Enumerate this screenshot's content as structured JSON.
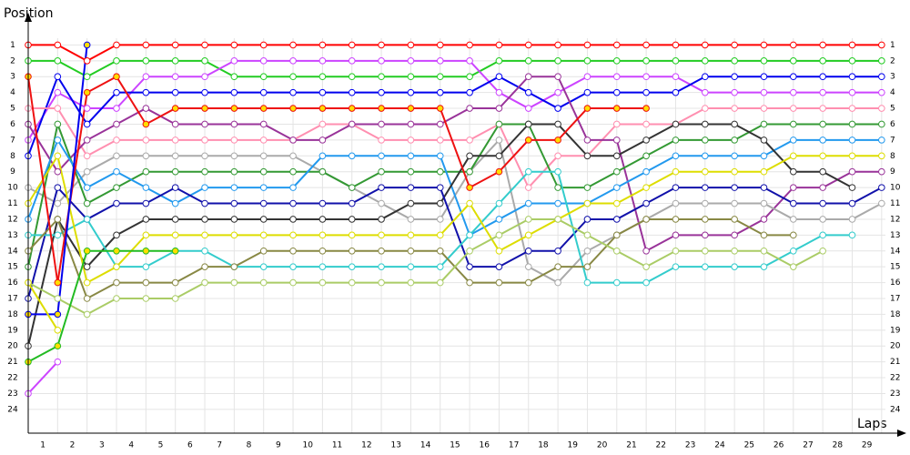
{
  "chart_data": {
    "type": "line",
    "y_label": "Position",
    "x_label": "Laps",
    "x": [
      0,
      1,
      2,
      3,
      4,
      5,
      6,
      7,
      8,
      9,
      10,
      11,
      12,
      13,
      14,
      15,
      16,
      17,
      18,
      19,
      20,
      21,
      22,
      23,
      24,
      25,
      26,
      27,
      28,
      29
    ],
    "xlim": [
      0,
      29.5
    ],
    "xticks": [
      1,
      2,
      3,
      4,
      5,
      6,
      7,
      8,
      9,
      10,
      11,
      12,
      13,
      14,
      15,
      16,
      17,
      18,
      19,
      20,
      21,
      22,
      23,
      24,
      25,
      26,
      27,
      28,
      29
    ],
    "ylim": [
      25.5,
      0
    ],
    "yticks": [
      1,
      2,
      3,
      4,
      5,
      6,
      7,
      8,
      9,
      10,
      11,
      12,
      13,
      14,
      15,
      16,
      17,
      18,
      19,
      20,
      21,
      22,
      23,
      24
    ],
    "grid": true,
    "series": [
      {
        "color": "#ff0000",
        "values": [
          1,
          1,
          2,
          1,
          1,
          1,
          1,
          1,
          1,
          1,
          1,
          1,
          1,
          1,
          1,
          1,
          1,
          1,
          1,
          1,
          1,
          1,
          1,
          1,
          1,
          1,
          1,
          1,
          1,
          1
        ]
      },
      {
        "color": "#22cc22",
        "values": [
          2,
          2,
          3,
          2,
          2,
          2,
          2,
          3,
          3,
          3,
          3,
          3,
          3,
          3,
          3,
          3,
          2,
          2,
          2,
          2,
          2,
          2,
          2,
          2,
          2,
          2,
          2,
          2,
          2,
          2
        ]
      },
      {
        "color": "#cc44ff",
        "values": [
          7,
          4,
          5,
          5,
          3,
          3,
          3,
          2,
          2,
          2,
          2,
          2,
          2,
          2,
          2,
          2,
          4,
          5,
          4,
          3,
          3,
          3,
          3,
          4,
          4,
          4,
          4,
          4,
          4,
          4
        ]
      },
      {
        "color": "#0000ee",
        "values": [
          8,
          3,
          6,
          4,
          4,
          4,
          4,
          4,
          4,
          4,
          4,
          4,
          4,
          4,
          4,
          4,
          3,
          4,
          5,
          4,
          4,
          4,
          4,
          3,
          3,
          3,
          3,
          3,
          3,
          3
        ]
      },
      {
        "color": "#ff8fb0",
        "values": [
          5,
          5,
          8,
          7,
          7,
          7,
          7,
          7,
          7,
          7,
          6,
          6,
          7,
          7,
          7,
          7,
          6,
          10,
          8,
          8,
          6,
          6,
          6,
          5,
          5,
          5,
          5,
          5,
          5,
          5
        ]
      },
      {
        "color": "#993399",
        "values": [
          6,
          9,
          7,
          6,
          5,
          6,
          6,
          6,
          6,
          7,
          7,
          6,
          6,
          6,
          6,
          5,
          5,
          3,
          3,
          7,
          7,
          14,
          13,
          13,
          13,
          12,
          10,
          10,
          9,
          9
        ]
      },
      {
        "color": "#aaaaaa",
        "values": [
          10,
          11,
          9,
          8,
          8,
          8,
          8,
          8,
          8,
          8,
          9,
          10,
          11,
          12,
          12,
          9,
          7,
          15,
          16,
          14,
          13,
          12,
          11,
          11,
          11,
          11,
          12,
          12,
          12,
          11
        ]
      },
      {
        "color": "#339933",
        "values": [
          15,
          6,
          11,
          10,
          9,
          9,
          9,
          9,
          9,
          9,
          9,
          10,
          9,
          9,
          9,
          9,
          6,
          6,
          10,
          10,
          9,
          8,
          7,
          7,
          7,
          6,
          6,
          6,
          6,
          6
        ]
      },
      {
        "color": "#2299ee",
        "values": [
          12,
          7,
          10,
          9,
          10,
          11,
          10,
          10,
          10,
          10,
          8,
          8,
          8,
          8,
          8,
          13,
          12,
          11,
          11,
          11,
          10,
          9,
          8,
          8,
          8,
          8,
          7,
          7,
          7,
          7
        ]
      },
      {
        "color": "#333333",
        "values": [
          20,
          12,
          15,
          13,
          12,
          12,
          12,
          12,
          12,
          12,
          12,
          12,
          12,
          11,
          11,
          8,
          8,
          6,
          6,
          8,
          8,
          7,
          6,
          6,
          6,
          7,
          9,
          9,
          10,
          null
        ]
      },
      {
        "color": "#1111aa",
        "values": [
          17,
          10,
          12,
          11,
          11,
          10,
          11,
          11,
          11,
          11,
          11,
          11,
          10,
          10,
          10,
          15,
          15,
          14,
          14,
          12,
          12,
          11,
          10,
          10,
          10,
          10,
          11,
          11,
          11,
          10
        ]
      },
      {
        "color": "#33cccc",
        "values": [
          13,
          13,
          12,
          15,
          15,
          14,
          14,
          15,
          15,
          15,
          15,
          15,
          15,
          15,
          15,
          13,
          11,
          9,
          9,
          16,
          16,
          16,
          15,
          15,
          15,
          15,
          14,
          13,
          13,
          null
        ]
      },
      {
        "color": "#dddd00",
        "values": [
          11,
          8,
          16,
          15,
          13,
          13,
          13,
          13,
          13,
          13,
          13,
          13,
          13,
          13,
          13,
          11,
          14,
          13,
          12,
          11,
          11,
          10,
          9,
          9,
          9,
          9,
          8,
          8,
          8,
          8
        ]
      },
      {
        "color": "#888844",
        "values": [
          14,
          12,
          17,
          16,
          16,
          16,
          15,
          15,
          14,
          14,
          14,
          14,
          14,
          14,
          14,
          16,
          16,
          16,
          15,
          15,
          13,
          12,
          12,
          12,
          12,
          13,
          13,
          null,
          null,
          null
        ]
      },
      {
        "color": "#aacc66",
        "values": [
          16,
          17,
          18,
          17,
          17,
          17,
          16,
          16,
          16,
          16,
          16,
          16,
          16,
          16,
          16,
          14,
          13,
          12,
          12,
          13,
          14,
          15,
          14,
          14,
          14,
          14,
          15,
          14,
          null,
          null
        ]
      },
      {
        "color": "#ee1111",
        "marker_color": "#ffdd00",
        "values": [
          3,
          16,
          4,
          3,
          6,
          5,
          5,
          5,
          5,
          5,
          5,
          5,
          5,
          5,
          5,
          10,
          9,
          7,
          7,
          5,
          5,
          5,
          null,
          null,
          null,
          null,
          null,
          null,
          null,
          null
        ]
      },
      {
        "color": "#cc44ff",
        "values": [
          23,
          21,
          null,
          null,
          null,
          null,
          null,
          null,
          null,
          null,
          null,
          null,
          null,
          null,
          null,
          null,
          null,
          null,
          null,
          null,
          null,
          null,
          null,
          null,
          null,
          null,
          null,
          null,
          null,
          null
        ]
      },
      {
        "color": "#22bb22",
        "marker_color": "#ffdd00",
        "values": [
          21,
          20,
          14,
          14,
          14,
          14,
          null,
          null,
          null,
          null,
          null,
          null,
          null,
          null,
          null,
          null,
          null,
          null,
          null,
          null,
          null,
          null,
          null,
          null,
          null,
          null,
          null,
          null,
          null,
          null
        ]
      },
      {
        "color": "#0000ee",
        "marker_color": "#ffdd00",
        "values": [
          18,
          18,
          1,
          null,
          null,
          null,
          null,
          null,
          null,
          null,
          null,
          null,
          null,
          null,
          null,
          null,
          null,
          null,
          null,
          null,
          null,
          null,
          null,
          null,
          null,
          null,
          null,
          null,
          null,
          null
        ]
      },
      {
        "color": "#dddd00",
        "values": [
          16,
          19,
          null,
          null,
          null,
          null,
          null,
          null,
          null,
          null,
          null,
          null,
          null,
          null,
          null,
          null,
          null,
          null,
          null,
          null,
          null,
          null,
          null,
          null,
          null,
          null,
          null,
          null,
          null,
          null
        ]
      }
    ]
  }
}
